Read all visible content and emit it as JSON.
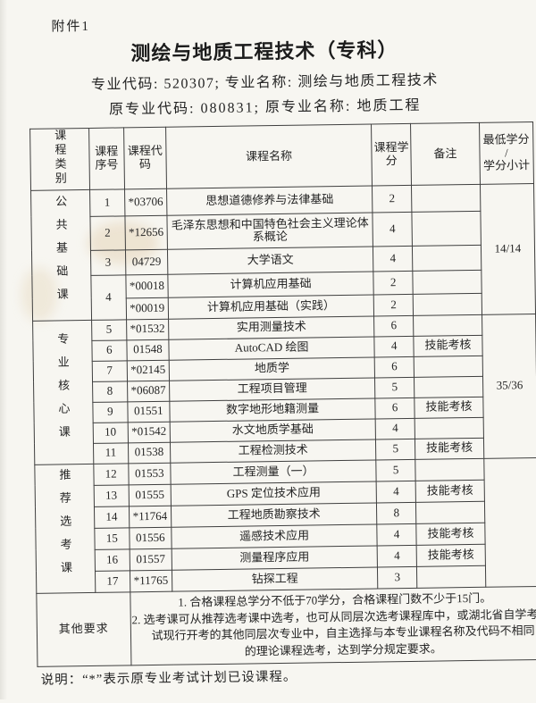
{
  "page": {
    "attachment_label": "附件1",
    "title": "测绘与地质工程技术（专科）",
    "subtitle_line1": "专业代码: 520307; 专业名称: 测绘与地质工程技术",
    "subtitle_line2": "原专业代码: 080831; 原专业名称: 地质工程",
    "footnote": "说明：“*”表示原专业考试计划已设课程。"
  },
  "table": {
    "headers": {
      "category": "课程类别",
      "seq": "课程序号",
      "code": "课程代码",
      "name": "课程名称",
      "credit": "课程学分",
      "remark": "备注",
      "min_credit": "最低学分\n/\n学分小计"
    },
    "sections": [
      {
        "label": "公共基础课",
        "subtotal": "14/14"
      },
      {
        "label": "专业核心课",
        "subtotal": "35/36"
      },
      {
        "label": "推荐选考课",
        "subtotal": ""
      }
    ],
    "rows": [
      {
        "seq": "1",
        "code": "*03706",
        "name": "思想道德修养与法律基础",
        "credit": "2",
        "remark": ""
      },
      {
        "seq": "2",
        "code": "*12656",
        "name": "毛泽东思想和中国特色社会主义理论体系概论",
        "credit": "4",
        "remark": ""
      },
      {
        "seq": "3",
        "code": "04729",
        "name": "大学语文",
        "credit": "4",
        "remark": ""
      },
      {
        "seq": "4",
        "code": "*00018",
        "name": "计算机应用基础",
        "credit": "2",
        "remark": ""
      },
      {
        "seq": "",
        "code": "*00019",
        "name": "计算机应用基础（实践）",
        "credit": "2",
        "remark": ""
      },
      {
        "seq": "5",
        "code": "*01532",
        "name": "实用测量技术",
        "credit": "6",
        "remark": ""
      },
      {
        "seq": "6",
        "code": "01548",
        "name": "AutoCAD 绘图",
        "credit": "4",
        "remark": "技能考核"
      },
      {
        "seq": "7",
        "code": "*02145",
        "name": "地质学",
        "credit": "6",
        "remark": ""
      },
      {
        "seq": "8",
        "code": "*06087",
        "name": "工程项目管理",
        "credit": "5",
        "remark": ""
      },
      {
        "seq": "9",
        "code": "01551",
        "name": "数字地形地籍测量",
        "credit": "6",
        "remark": "技能考核"
      },
      {
        "seq": "10",
        "code": "*01542",
        "name": "水文地质学基础",
        "credit": "4",
        "remark": ""
      },
      {
        "seq": "11",
        "code": "01538",
        "name": "工程检测技术",
        "credit": "5",
        "remark": "技能考核"
      },
      {
        "seq": "12",
        "code": "01553",
        "name": "工程测量（一）",
        "credit": "5",
        "remark": ""
      },
      {
        "seq": "13",
        "code": "01555",
        "name": "GPS 定位技术应用",
        "credit": "4",
        "remark": "技能考核"
      },
      {
        "seq": "14",
        "code": "*11764",
        "name": "工程地质勘察技术",
        "credit": "8",
        "remark": ""
      },
      {
        "seq": "15",
        "code": "01556",
        "name": "遥感技术应用",
        "credit": "4",
        "remark": "技能考核"
      },
      {
        "seq": "16",
        "code": "01557",
        "name": "测量程序应用",
        "credit": "4",
        "remark": "技能考核"
      },
      {
        "seq": "17",
        "code": "*11765",
        "name": "钻探工程",
        "credit": "3",
        "remark": ""
      }
    ],
    "other_requirements": {
      "label": "其他要求",
      "items": [
        "1. 合格课程总学分不低于70学分，合格课程门数不少于15门。",
        "2. 选考课可从推荐选考课中选考，也可从同层次选考课程库中，或湖北省自学考试现行开考的其他同层次专业中，自主选择与本专业课程名称及代码不相同的理论课程选考，达到学分规定要求。"
      ]
    }
  }
}
